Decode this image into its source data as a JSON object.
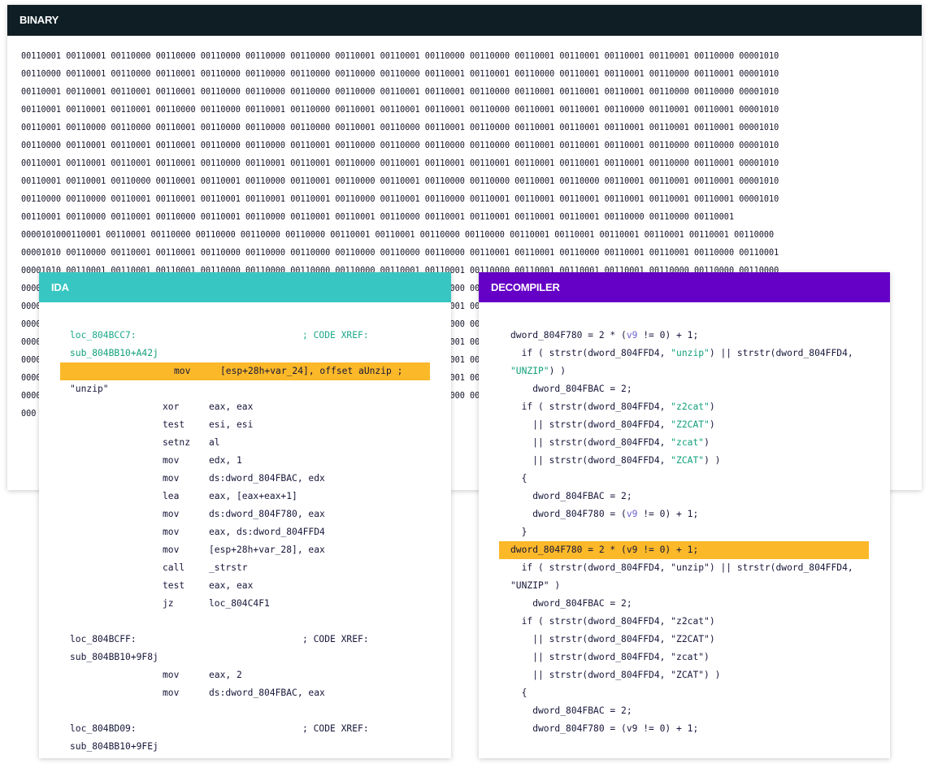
{
  "binary": {
    "title": "BINARY",
    "lines": [
      "00110001 00110001 00110000 00110000 00110000 00110000 00110000 00110001 00110001 00110000 00110000 00110001 00110001 00110001 00110001 00110000 00001010",
      "00110000 00110001 00110000 00110001 00110000 00110000 00110000 00110000 00110000 00110001 00110001 00110000 00110001 00110001 00110000 00110001 00001010",
      "00110001 00110001 00110001 00110001 00110000 00110000 00110000 00110000 00110001 00110001 00110000 00110001 00110001 00110001 00110000 00110000 00001010",
      "00110001 00110001 00110001 00110000 00110000 00110001 00110000 00110001 00110001 00110001 00110000 00110001 00110001 00110000 00110001 00110001 00001010",
      "00110001 00110000 00110000 00110001 00110000 00110000 00110000 00110001 00110000 00110001 00110000 00110001 00110001 00110001 00110001 00110001 00001010",
      "00110000 00110001 00110001 00110001 00110000 00110000 00110001 00110000 00110000 00110000 00110000 00110001 00110001 00110001 00110000 00110000 00001010",
      "00110001 00110001 00110001 00110001 00110000 00110001 00110001 00110000 00110001 00110001 00110001 00110001 00110001 00110001 00110000 00110001 00001010",
      "00110001 00110001 00110000 00110001 00110001 00110000 00110001 00110000 00110001 00110000 00110000 00110001 00110000 00110001 00110001 00110001 00001010",
      "00110000 00110000 00110001 00110001 00110001 00110001 00110001 00110000 00110001 00110000 00110001 00110001 00110001 00110001 00110001 00110001 00001010",
      "00110001 00110000 00110001 00110000 00110001 00110000 00110001 00110001 00110000 00110001 00110001 00110001 00110001 00110000 00110000 00110001",
      "0000101000110001 00110001 00110000 00110000 00110000 00110000 00110001 00110001 00110000 00110000 00110001 00110001 00110001 00110001 00110001 00110000",
      "00001010 00110000 00110001 00110001 00110000 00110000 00110000 00110000 00110000 00110000 00110001 00110001 00110000 00110001 00110001 00110000 00110001",
      "00001010 00110001 00110001 00110001 00110000 00110000 00110000 00110000 00110001 00110001 00110000 00110001 00110001 00110001 00110000 00110000 00110000",
      "00001010 00110001 00110001 00110000 00110000 00110000 00110000 00110000 00110000 00110000 00110001 00110001 00110001 00110001 00110001 00110001 00110001",
      "00001010 00110001 00110001 00110001 00110001 00110000 00110000 00110001 00110001 00110001 00110000 00110001 00110001 00110000 00110001 00110000 00110001",
      "00001010 00110000 00110001 00110001 00110000 00110000 00110001 00110001 00110001 00110000 00110001 00110001 00110001 00110001 00110000 00110000 00110000",
      "00001010 00110000 00110001 00110000 00110001 00110000 00110000 00110001 00110001 00110001 00110000 00110001 00110001 00110000 00110001 00110000 00110001",
      "00001010 00110001 00110000 00110001 00110001 00110001 00110001 00110000 00110001 00110001 00110000 00110000 00110001 00110001 00110001 00110001 00110001",
      "00001010 00110001 00110000 00110001 00110000 00110000 00110001 00110001 00110000 00110001 00110000 00110001 00110000 00110001 00110001 00110001 00110001",
      "00001010 00110000 00110001 00110001 00110000 00110001 00110000 00110001 00110001 00110000 00110001 00110001 00110001 00110000 00110001 00110000 00110001",
      "000"
    ]
  },
  "ida": {
    "title": "IDA",
    "lines": [
      {
        "kind": "label",
        "text": "loc_804BCC7:",
        "comment": "; CODE XREF:",
        "color": "teal"
      },
      {
        "kind": "plain",
        "text": "sub_804BB10+A42j",
        "color": "green"
      },
      {
        "kind": "instr",
        "mnem": "mov",
        "ops": "[esp+28h+var_24], offset aUnzip ;",
        "highlight": true
      },
      {
        "kind": "plain",
        "text": "\"unzip\""
      },
      {
        "kind": "instr",
        "mnem": "xor",
        "ops": "eax, eax"
      },
      {
        "kind": "instr",
        "mnem": "test",
        "ops": "esi, esi"
      },
      {
        "kind": "instr",
        "mnem": "setnz",
        "ops": "al"
      },
      {
        "kind": "instr",
        "mnem": "mov",
        "ops": "edx, 1"
      },
      {
        "kind": "instr",
        "mnem": "mov",
        "ops": "ds:dword_804FBAC, edx"
      },
      {
        "kind": "instr",
        "mnem": "lea",
        "ops": "eax, [eax+eax+1]"
      },
      {
        "kind": "instr",
        "mnem": "mov",
        "ops": "ds:dword_804F780, eax"
      },
      {
        "kind": "instr",
        "mnem": "mov",
        "ops": "eax, ds:dword_804FFD4"
      },
      {
        "kind": "instr",
        "mnem": "mov",
        "ops": "[esp+28h+var_28], eax"
      },
      {
        "kind": "instr",
        "mnem": "call",
        "ops": "_strstr"
      },
      {
        "kind": "instr",
        "mnem": "test",
        "ops": "eax, eax"
      },
      {
        "kind": "instr",
        "mnem": "jz",
        "ops": "loc_804C4F1"
      },
      {
        "kind": "blank"
      },
      {
        "kind": "label",
        "text": "loc_804BCFF:",
        "comment": "; CODE XREF:"
      },
      {
        "kind": "plain",
        "text": "sub_804BB10+9F8j"
      },
      {
        "kind": "instr",
        "mnem": "mov",
        "ops": "eax, 2"
      },
      {
        "kind": "instr",
        "mnem": "mov",
        "ops": "ds:dword_804FBAC, eax"
      },
      {
        "kind": "blank"
      },
      {
        "kind": "label",
        "text": "loc_804BD09:",
        "comment": "; CODE XREF:"
      },
      {
        "kind": "plain",
        "text": "sub_804BB10+9FEj"
      }
    ]
  },
  "decompiler": {
    "title": "DECOMPILER",
    "lines": [
      [
        {
          "t": "dword_804F780 = 2 * ("
        },
        {
          "t": "v9",
          "c": "num"
        },
        {
          "t": " != 0) + 1;"
        }
      ],
      [
        {
          "t": "  if ( strstr(dword_804FFD4, "
        },
        {
          "t": "\"unzip\"",
          "c": "green"
        },
        {
          "t": ") || strstr(dword_804FFD4,"
        }
      ],
      [
        {
          "t": "\"UNZIP\"",
          "c": "green"
        },
        {
          "t": ") )"
        }
      ],
      [
        {
          "t": "    dword_804FBAC = 2;"
        }
      ],
      [
        {
          "t": "  if ( strstr(dword_804FFD4, "
        },
        {
          "t": "\"z2cat\"",
          "c": "green"
        },
        {
          "t": ")"
        }
      ],
      [
        {
          "t": "    || strstr(dword_804FFD4, "
        },
        {
          "t": "\"Z2CAT\"",
          "c": "green"
        },
        {
          "t": ")"
        }
      ],
      [
        {
          "t": "    || strstr(dword_804FFD4, "
        },
        {
          "t": "\"zcat\"",
          "c": "green"
        },
        {
          "t": ")"
        }
      ],
      [
        {
          "t": "    || strstr(dword_804FFD4, "
        },
        {
          "t": "\"ZCAT\"",
          "c": "green"
        },
        {
          "t": ") )"
        }
      ],
      [
        {
          "t": "  {"
        }
      ],
      [
        {
          "t": "    dword_804FBAC = 2;"
        }
      ],
      [
        {
          "t": "    dword_804F780 = ("
        },
        {
          "t": "v9",
          "c": "num"
        },
        {
          "t": " != 0) + 1;"
        }
      ],
      [
        {
          "t": "  }"
        }
      ],
      [
        {
          "t": "dword_804F780 = 2 * (v9 != 0) + 1;",
          "hl": true
        }
      ],
      [
        {
          "t": "  if ( strstr(dword_804FFD4, \"unzip\") || strstr(dword_804FFD4,"
        }
      ],
      [
        {
          "t": "\"UNZIP\" )"
        }
      ],
      [
        {
          "t": "    dword_804FBAC = 2;"
        }
      ],
      [
        {
          "t": "  if ( strstr(dword_804FFD4, \"z2cat\")"
        }
      ],
      [
        {
          "t": "    || strstr(dword_804FFD4, \"Z2CAT\")"
        }
      ],
      [
        {
          "t": "    || strstr(dword_804FFD4, \"zcat\")"
        }
      ],
      [
        {
          "t": "    || strstr(dword_804FFD4, \"ZCAT\") )"
        }
      ],
      [
        {
          "t": "  {"
        }
      ],
      [
        {
          "t": "    dword_804FBAC = 2;"
        }
      ],
      [
        {
          "t": "    dword_804F780 = (v9 != 0) + 1;"
        }
      ]
    ]
  },
  "colors": {
    "binary_header": "#0e1e24",
    "ida_header": "#38c6c3",
    "decompiler_header": "#6500c6",
    "highlight": "#fbb829"
  }
}
